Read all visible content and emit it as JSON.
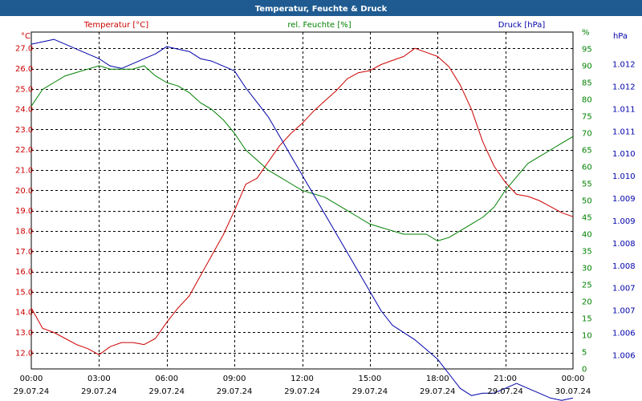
{
  "title": "Temperatur, Feuchte & Druck",
  "colors": {
    "title_bg": "#1f5b91",
    "title_fg": "#ffffff",
    "temperature": "#cc0000",
    "humidity": "#008000",
    "pressure": "#0000aa",
    "grid": "#000000",
    "axis_text": "#000000"
  },
  "chart_data": {
    "type": "line",
    "title": "Temperatur, Feuchte & Druck",
    "x_ticks": [
      {
        "time": "00:00",
        "date": "29.07.24"
      },
      {
        "time": "03:00",
        "date": "29.07.24"
      },
      {
        "time": "06:00",
        "date": "29.07.24"
      },
      {
        "time": "09:00",
        "date": "29.07.24"
      },
      {
        "time": "12:00",
        "date": "29.07.24"
      },
      {
        "time": "15:00",
        "date": "29.07.24"
      },
      {
        "time": "18:00",
        "date": "29.07.24"
      },
      {
        "time": "21:00",
        "date": "29.07.24"
      },
      {
        "time": "00:00",
        "date": "30.07.24"
      }
    ],
    "xlim_hours": [
      0,
      24
    ],
    "axes": {
      "temperature": {
        "label": "Temperatur [°C]",
        "unit": "°C",
        "range": [
          11.2,
          27.8
        ],
        "ticks": [
          "12.0",
          "13.0",
          "14.0",
          "15.0",
          "16.0",
          "17.0",
          "18.0",
          "19.0",
          "20.0",
          "21.0",
          "22.0",
          "23.0",
          "24.0",
          "25.0",
          "26.0",
          "27.0"
        ]
      },
      "humidity": {
        "label": "rel. Feuchte [%]",
        "unit": "%",
        "range": [
          0,
          100
        ],
        "ticks": [
          "0",
          "5",
          "10",
          "15",
          "20",
          "25",
          "30",
          "35",
          "40",
          "45",
          "50",
          "55",
          "60",
          "65",
          "70",
          "75",
          "80",
          "85",
          "90",
          "95",
          "%"
        ]
      },
      "pressure": {
        "label": "Druck [hPa]",
        "unit": "hPa",
        "range": [
          1005.6,
          1012.55
        ],
        "ticks": [
          "1.006",
          "1.006",
          "1.007",
          "1.007",
          "1.008",
          "1.008",
          "1.009",
          "1.009",
          "1.010",
          "1.010",
          "1.011",
          "1.011",
          "1.012",
          "1.012"
        ]
      }
    },
    "series": [
      {
        "name": "Temperatur [°C]",
        "axis": "temperature",
        "x": [
          0,
          0.5,
          1,
          1.5,
          2,
          2.5,
          3,
          3.5,
          4,
          4.5,
          5,
          5.5,
          6,
          6.5,
          7,
          7.5,
          8,
          8.5,
          9,
          9.5,
          10,
          10.5,
          11,
          11.5,
          12,
          12.5,
          13,
          13.5,
          14,
          14.5,
          15,
          15.5,
          16,
          16.5,
          17,
          17.5,
          18,
          18.5,
          19,
          19.5,
          20,
          20.5,
          21,
          21.5,
          22,
          22.5,
          23,
          23.5,
          24
        ],
        "values": [
          14.2,
          13.2,
          13.0,
          12.7,
          12.4,
          12.2,
          11.9,
          12.3,
          12.5,
          12.5,
          12.4,
          12.7,
          13.5,
          14.2,
          14.8,
          15.8,
          16.8,
          17.8,
          19.0,
          20.3,
          20.6,
          21.4,
          22.2,
          22.8,
          23.3,
          23.9,
          24.4,
          24.9,
          25.5,
          25.8,
          25.9,
          26.2,
          26.4,
          26.6,
          27.0,
          26.8,
          26.6,
          26.1,
          25.2,
          24.0,
          22.4,
          21.2,
          20.4,
          19.8,
          19.7,
          19.5,
          19.2,
          18.9,
          18.7
        ]
      },
      {
        "name": "rel. Feuchte [%]",
        "axis": "humidity",
        "x": [
          0,
          0.5,
          1,
          1.5,
          2,
          2.5,
          3,
          3.5,
          4,
          4.5,
          5,
          5.5,
          6,
          6.5,
          7,
          7.5,
          8,
          8.5,
          9,
          9.5,
          10,
          10.5,
          11,
          11.5,
          12,
          12.5,
          13,
          13.5,
          14,
          14.5,
          15,
          15.5,
          16,
          16.5,
          17,
          17.5,
          18,
          18.5,
          19,
          19.5,
          20,
          20.5,
          21,
          21.5,
          22,
          22.5,
          23,
          23.5,
          24
        ],
        "values": [
          78,
          83,
          85,
          87,
          88,
          89,
          90,
          89,
          89,
          89,
          90,
          87,
          85,
          84,
          82,
          79,
          77,
          74,
          70,
          65,
          62,
          59,
          57,
          55,
          53,
          52,
          51,
          49,
          47,
          45,
          43,
          42,
          41,
          40,
          40,
          40,
          38,
          39,
          41,
          43,
          45,
          48,
          53,
          57,
          61,
          63,
          65,
          67,
          69
        ]
      },
      {
        "name": "Druck [hPa]",
        "axis": "pressure",
        "x": [
          0,
          0.5,
          1,
          1.5,
          2,
          2.5,
          3,
          3.5,
          4,
          4.5,
          5,
          5.5,
          6,
          6.5,
          7,
          7.5,
          8,
          8.5,
          9,
          9.5,
          10,
          10.5,
          11,
          11.5,
          12,
          12.5,
          13,
          13.5,
          14,
          14.5,
          15,
          15.5,
          16,
          16.5,
          17,
          17.5,
          18,
          18.5,
          19,
          19.5,
          20,
          20.5,
          21,
          21.5,
          22,
          22.5,
          23,
          23.5,
          24
        ],
        "values": [
          1012.3,
          1012.35,
          1012.4,
          1012.3,
          1012.2,
          1012.1,
          1012.0,
          1011.85,
          1011.8,
          1011.9,
          1012.0,
          1012.1,
          1012.25,
          1012.2,
          1012.15,
          1012.0,
          1011.95,
          1011.85,
          1011.75,
          1011.4,
          1011.1,
          1010.8,
          1010.4,
          1010.0,
          1009.6,
          1009.2,
          1008.8,
          1008.4,
          1008.0,
          1007.6,
          1007.2,
          1006.8,
          1006.5,
          1006.35,
          1006.2,
          1006.0,
          1005.8,
          1005.5,
          1005.2,
          1005.05,
          1005.1,
          1005.1,
          1005.2,
          1005.3,
          1005.2,
          1005.1,
          1005.0,
          1004.95,
          1005.0
        ]
      }
    ]
  }
}
